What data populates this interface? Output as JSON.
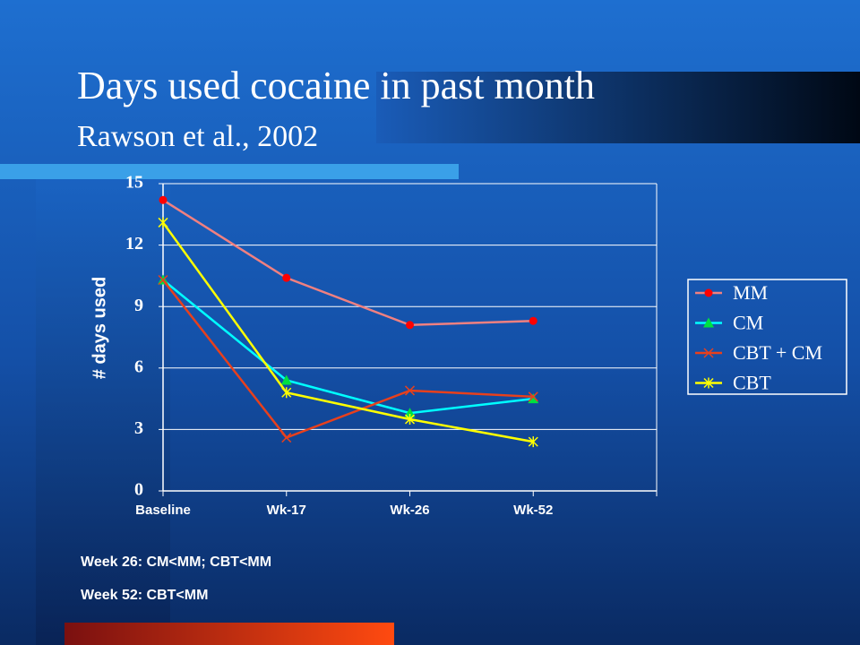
{
  "chart_data": {
    "type": "line",
    "title": "Days used cocaine in past month",
    "subtitle": "Rawson et al., 2002",
    "y_label": "# days used",
    "categories": [
      "Baseline",
      "Wk-17",
      "Wk-26",
      "Wk-52"
    ],
    "series": [
      {
        "name": "MM",
        "color": "#f08080",
        "marker_color": "#ff0000",
        "marker": "circle",
        "values": [
          14.2,
          10.4,
          8.1,
          8.3
        ]
      },
      {
        "name": "CM",
        "color": "#00ffff",
        "marker_color": "#00e040",
        "marker": "triangle",
        "values": [
          10.3,
          5.4,
          3.8,
          4.5
        ]
      },
      {
        "name": "CBT + CM",
        "color": "#e8401c",
        "marker_color": "#e8401c",
        "marker": "x",
        "values": [
          10.3,
          2.6,
          4.9,
          4.6
        ]
      },
      {
        "name": "CBT",
        "color": "#ffff00",
        "marker_color": "#ffff00",
        "marker": "star",
        "values": [
          13.1,
          4.8,
          3.5,
          2.4
        ]
      }
    ],
    "ylim": [
      0,
      15
    ],
    "yticks": [
      0,
      3,
      6,
      9,
      12,
      15
    ],
    "grid": true,
    "legend": "right",
    "annotations": [
      "Week 26: CM<MM; CBT<MM",
      "Week 52: CBT<MM"
    ]
  }
}
